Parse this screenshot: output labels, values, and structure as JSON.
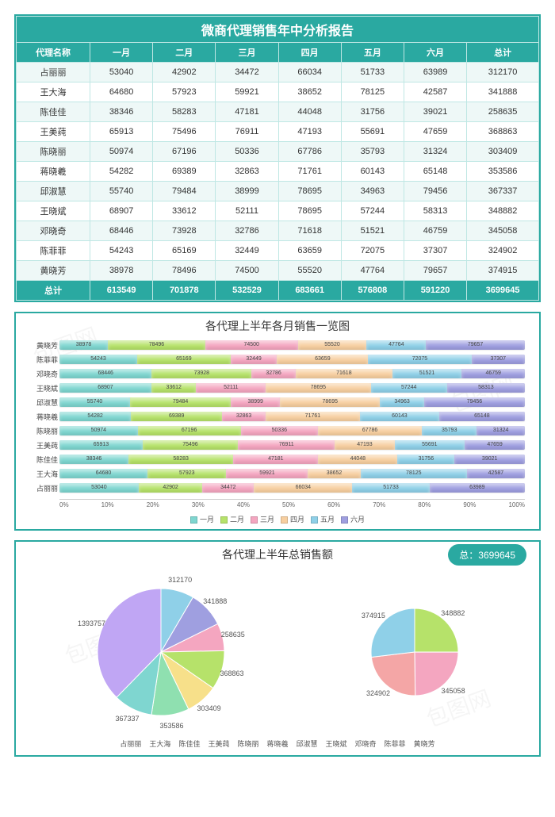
{
  "colors": {
    "teal": "#2aa9a1",
    "border": "#bfe7e4",
    "row_odd": "#eef8f7",
    "row_even": "#ffffff"
  },
  "table": {
    "title": "微商代理销售年中分析报告",
    "columns": [
      "代理名称",
      "一月",
      "二月",
      "三月",
      "四月",
      "五月",
      "六月",
      "总计"
    ],
    "rows": [
      [
        "占丽丽",
        53040,
        42902,
        34472,
        66034,
        51733,
        63989,
        312170
      ],
      [
        "王大海",
        64680,
        57923,
        59921,
        38652,
        78125,
        42587,
        341888
      ],
      [
        "陈佳佳",
        38346,
        58283,
        47181,
        44048,
        31756,
        39021,
        258635
      ],
      [
        "王美莼",
        65913,
        75496,
        76911,
        47193,
        55691,
        47659,
        368863
      ],
      [
        "陈晓丽",
        50974,
        67196,
        50336,
        67786,
        35793,
        31324,
        303409
      ],
      [
        "蒋晓羲",
        54282,
        69389,
        32863,
        71761,
        60143,
        65148,
        353586
      ],
      [
        "邱淑慧",
        55740,
        79484,
        38999,
        78695,
        34963,
        79456,
        367337
      ],
      [
        "王晓斌",
        68907,
        33612,
        52111,
        78695,
        57244,
        58313,
        348882
      ],
      [
        "邓晓奇",
        68446,
        73928,
        32786,
        71618,
        51521,
        46759,
        345058
      ],
      [
        "陈菲菲",
        54243,
        65169,
        32449,
        63659,
        72075,
        37307,
        324902
      ],
      [
        "黄晓芳",
        38978,
        78496,
        74500,
        55520,
        47764,
        79657,
        374915
      ]
    ],
    "total_row": [
      "总计",
      613549,
      701878,
      532529,
      683661,
      576808,
      591220,
      3699645
    ]
  },
  "stacked_chart": {
    "title": "各代理上半年各月销售一览图",
    "month_colors": [
      "#7fd6d0",
      "#b6e26a",
      "#f4a6c0",
      "#f7cfa0",
      "#8fd0e8",
      "#9f9fe0"
    ],
    "legend": [
      "一月",
      "二月",
      "三月",
      "四月",
      "五月",
      "六月"
    ],
    "x_ticks": [
      "0%",
      "10%",
      "20%",
      "30%",
      "40%",
      "50%",
      "60%",
      "70%",
      "80%",
      "90%",
      "100%"
    ],
    "rows_order": [
      "黄晓芳",
      "陈菲菲",
      "邓晓奇",
      "王晓斌",
      "邱淑慧",
      "蒋晓羲",
      "陈晓丽",
      "王美莼",
      "陈佳佳",
      "王大海",
      "占丽丽"
    ]
  },
  "pie_chart": {
    "title": "各代理上半年总销售额",
    "total_label": "总：",
    "total_value": 3699645,
    "main_group_label": 1393757,
    "colors": [
      "#8fd0e8",
      "#9f9fe0",
      "#f4a6c0",
      "#b6e26a",
      "#f7e08a",
      "#8fe0b0",
      "#7fd6d0",
      "#c0a6f4",
      "#f4a6a6",
      "#a6c0f4",
      "#e0e07f"
    ],
    "slices_main": [
      {
        "name": "占丽丽",
        "value": 312170
      },
      {
        "name": "王大海",
        "value": 341888
      },
      {
        "name": "陈佳佳",
        "value": 258635
      },
      {
        "name": "王美莼",
        "value": 368863
      },
      {
        "name": "陈晓丽",
        "value": 303409
      },
      {
        "name": "蒋晓羲",
        "value": 353586
      },
      {
        "name": "邱淑慧",
        "value": 367337
      }
    ],
    "slices_sub": [
      {
        "name": "王晓斌",
        "value": 348882,
        "color": "#b6e26a"
      },
      {
        "name": "邓晓奇",
        "value": 345058,
        "color": "#f4a6c0"
      },
      {
        "name": "陈菲菲",
        "value": 324902,
        "color": "#f4a6a6"
      },
      {
        "name": "黄晓芳",
        "value": 374915,
        "color": "#8fd0e8"
      }
    ]
  }
}
